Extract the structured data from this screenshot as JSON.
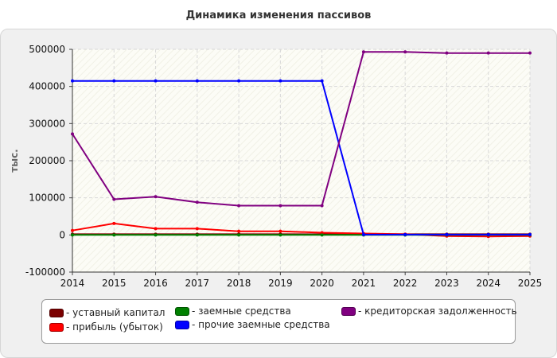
{
  "chart_data": {
    "type": "line",
    "title": "Динамика изменения пассивов",
    "xlabel": "",
    "ylabel": "тыс.",
    "x": [
      2014,
      2015,
      2016,
      2017,
      2018,
      2019,
      2020,
      2021,
      2022,
      2023,
      2024,
      2025
    ],
    "ylim": [
      -100000,
      500000
    ],
    "yticks": [
      -100000,
      0,
      100000,
      200000,
      300000,
      400000,
      500000
    ],
    "ytick_labels": [
      "-100000",
      "0",
      "100000",
      "200000",
      "300000",
      "400000",
      "500000"
    ],
    "grid": true,
    "legend_position": "bottom",
    "series": [
      {
        "name": "уставный капитал",
        "color": "#7b0000",
        "values": [
          2000,
          2000,
          2000,
          2000,
          2000,
          2000,
          2000,
          2000,
          2000,
          2000,
          2000,
          2000
        ]
      },
      {
        "name": "прибыль (убыток)",
        "color": "#ff0000",
        "values": [
          12000,
          31000,
          17000,
          17000,
          10000,
          10000,
          6000,
          4000,
          2000,
          -3000,
          -4000,
          -3000
        ]
      },
      {
        "name": "заемные средства",
        "color": "#008000",
        "values": [
          0,
          0,
          0,
          0,
          0,
          0,
          0,
          0,
          0,
          0,
          0,
          0
        ]
      },
      {
        "name": "прочие заемные средства",
        "color": "#0000ff",
        "values": [
          415000,
          415000,
          415000,
          415000,
          415000,
          415000,
          415000,
          1000,
          1000,
          1000,
          1000,
          1000
        ]
      },
      {
        "name": "кредиторская задолженность",
        "color": "#800080",
        "values": [
          272000,
          96000,
          103000,
          88000,
          79000,
          79000,
          79000,
          493000,
          493000,
          490000,
          490000,
          490000
        ]
      }
    ]
  }
}
